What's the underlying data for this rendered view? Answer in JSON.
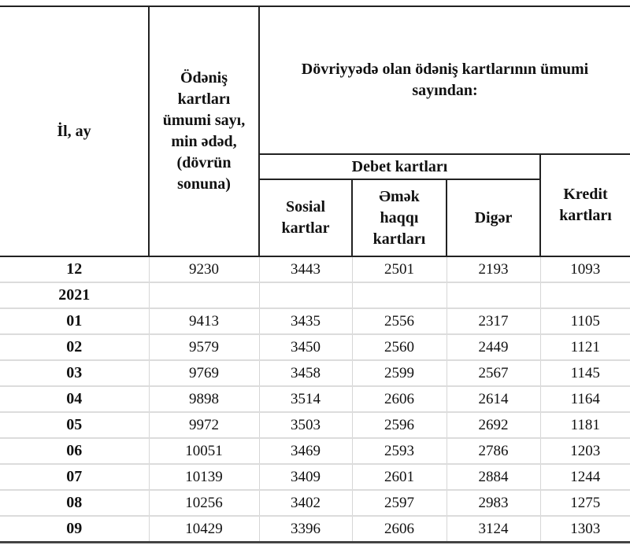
{
  "header": {
    "period": "İl, ay",
    "total": "Ödəniş kartları ümumi sayı, min ədəd, (dövrün sonuna)",
    "group": "Dövriyyədə olan ödəniş kartlarının ümumi sayından:",
    "debit_group": "Debet kartları",
    "social": "Sosial kartlar",
    "salary": "Əmək haqqı kartları",
    "other": "Digər",
    "credit": "Kredit kartları"
  },
  "rows": [
    {
      "period": "12",
      "total": "9230",
      "social": "3443",
      "salary": "2501",
      "other": "2193",
      "credit": "1093"
    },
    {
      "period": "2021",
      "total": "",
      "social": "",
      "salary": "",
      "other": "",
      "credit": ""
    },
    {
      "period": "01",
      "total": "9413",
      "social": "3435",
      "salary": "2556",
      "other": "2317",
      "credit": "1105"
    },
    {
      "period": "02",
      "total": "9579",
      "social": "3450",
      "salary": "2560",
      "other": "2449",
      "credit": "1121"
    },
    {
      "period": "03",
      "total": "9769",
      "social": "3458",
      "salary": "2599",
      "other": "2567",
      "credit": "1145"
    },
    {
      "period": "04",
      "total": "9898",
      "social": "3514",
      "salary": "2606",
      "other": "2614",
      "credit": "1164"
    },
    {
      "period": "05",
      "total": "9972",
      "social": "3503",
      "salary": "2596",
      "other": "2692",
      "credit": "1181"
    },
    {
      "period": "06",
      "total": "10051",
      "social": "3469",
      "salary": "2593",
      "other": "2786",
      "credit": "1203"
    },
    {
      "period": "07",
      "total": "10139",
      "social": "3409",
      "salary": "2601",
      "other": "2884",
      "credit": "1244"
    },
    {
      "period": "08",
      "total": "10256",
      "social": "3402",
      "salary": "2597",
      "other": "2983",
      "credit": "1275"
    },
    {
      "period": "09",
      "total": "10429",
      "social": "3396",
      "salary": "2606",
      "other": "3124",
      "credit": "1303"
    }
  ]
}
